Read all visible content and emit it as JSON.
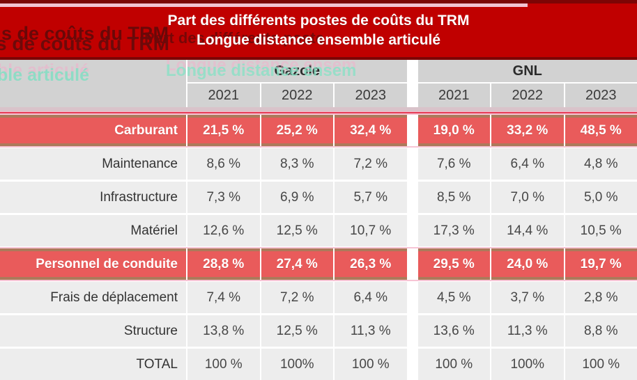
{
  "banner": {
    "line1": "Part des différents postes de coûts du TRM",
    "line2": "Longue distance ensemble articulé"
  },
  "ghosts": {
    "banner_left_1": "s de coûts du TRM",
    "banner_left_2": "s de coûts du TRM",
    "banner_mid": "Part des différents poste",
    "header_left": "ble articulé",
    "header_mid": "Longue distance ensem"
  },
  "header": {
    "groups": [
      "Gazole",
      "GNL"
    ],
    "years": [
      "2021",
      "2022",
      "2023"
    ]
  },
  "table": {
    "rows": [
      {
        "label": "Carburant",
        "highlight": true,
        "gazole": [
          "21,5 %",
          "25,2 %",
          "32,4 %"
        ],
        "gnl": [
          "19,0 %",
          "33,2 %",
          "48,5 %"
        ]
      },
      {
        "label": "Maintenance",
        "highlight": false,
        "gazole": [
          "8,6 %",
          "8,3 %",
          "7,2 %"
        ],
        "gnl": [
          "7,6 %",
          "6,4 %",
          "4,8 %"
        ]
      },
      {
        "label": "Infrastructure",
        "highlight": false,
        "gazole": [
          "7,3 %",
          "6,9 %",
          "5,7 %"
        ],
        "gnl": [
          "8,5 %",
          "7,0 %",
          "5,0 %"
        ]
      },
      {
        "label": "Matériel",
        "highlight": false,
        "gazole": [
          "12,6 %",
          "12,5 %",
          "10,7 %"
        ],
        "gnl": [
          "17,3 %",
          "14,4 %",
          "10,5 %"
        ]
      },
      {
        "label": "Personnel de conduite",
        "highlight": true,
        "gazole": [
          "28,8 %",
          "27,4 %",
          "26,3 %"
        ],
        "gnl": [
          "29,5 %",
          "24,0 %",
          "19,7 %"
        ]
      },
      {
        "label": "Frais de déplacement",
        "highlight": false,
        "gazole": [
          "7,4 %",
          "7,2 %",
          "6,4 %"
        ],
        "gnl": [
          "4,5 %",
          "3,7 %",
          "2,8 %"
        ]
      },
      {
        "label": "Structure",
        "highlight": false,
        "gazole": [
          "13,8 %",
          "12,5 %",
          "11,3 %"
        ],
        "gnl": [
          "13,6 %",
          "11,3 %",
          "8,8 %"
        ]
      },
      {
        "label": "TOTAL",
        "highlight": false,
        "gazole": [
          "100 %",
          "100%",
          "100 %"
        ],
        "gnl": [
          "100 %",
          "100%",
          "100 %"
        ]
      }
    ]
  },
  "chart_data": {
    "type": "table",
    "title": "Part des différents postes de coûts du TRM",
    "subtitle": "Longue distance ensemble articulé",
    "unit": "%",
    "column_groups": [
      "Gazole",
      "GNL"
    ],
    "years": [
      "2021",
      "2022",
      "2023"
    ],
    "rows": [
      {
        "poste": "Carburant",
        "highlight": true,
        "gazole": [
          21.5,
          25.2,
          32.4
        ],
        "gnl": [
          19.0,
          33.2,
          48.5
        ]
      },
      {
        "poste": "Maintenance",
        "highlight": false,
        "gazole": [
          8.6,
          8.3,
          7.2
        ],
        "gnl": [
          7.6,
          6.4,
          4.8
        ]
      },
      {
        "poste": "Infrastructure",
        "highlight": false,
        "gazole": [
          7.3,
          6.9,
          5.7
        ],
        "gnl": [
          8.5,
          7.0,
          5.0
        ]
      },
      {
        "poste": "Matériel",
        "highlight": false,
        "gazole": [
          12.6,
          12.5,
          10.7
        ],
        "gnl": [
          17.3,
          14.4,
          10.5
        ]
      },
      {
        "poste": "Personnel de conduite",
        "highlight": true,
        "gazole": [
          28.8,
          27.4,
          26.3
        ],
        "gnl": [
          29.5,
          24.0,
          19.7
        ]
      },
      {
        "poste": "Frais de déplacement",
        "highlight": false,
        "gazole": [
          7.4,
          7.2,
          6.4
        ],
        "gnl": [
          4.5,
          3.7,
          2.8
        ]
      },
      {
        "poste": "Structure",
        "highlight": false,
        "gazole": [
          13.8,
          12.5,
          11.3
        ],
        "gnl": [
          13.6,
          11.3,
          8.8
        ]
      },
      {
        "poste": "TOTAL",
        "highlight": false,
        "gazole": [
          100,
          100,
          100
        ],
        "gnl": [
          100,
          100,
          100
        ]
      }
    ]
  },
  "colors": {
    "banner_red": "#c00000",
    "banner_dark_edge": "#7c0505",
    "highlight_red": "#e95b5b",
    "highlight_border_brown": "#ac7a5b",
    "header_gray": "#d2d2d2",
    "cell_gray": "#ededed",
    "crimson_stripe": "#e63b55",
    "pink_accent": "#f7c5d5",
    "text_dark": "#3d3d3d",
    "text_white": "#ffffff"
  }
}
